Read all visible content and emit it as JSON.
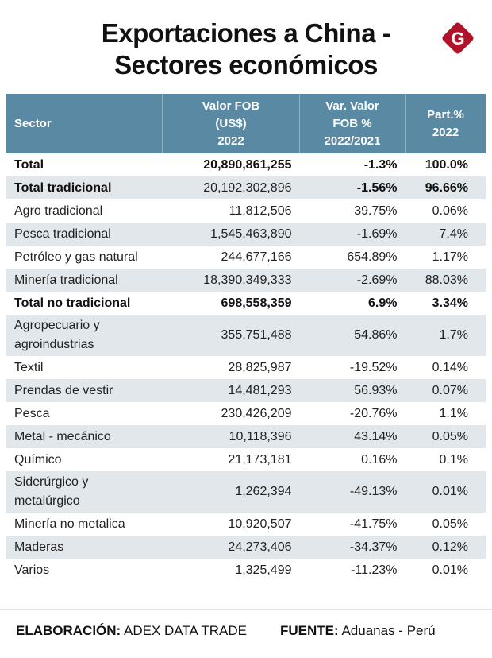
{
  "header": {
    "title_line1": "Exportaciones a China -",
    "title_line2": "Sectores económicos",
    "logo_letter": "G",
    "logo_color": "#b0122a"
  },
  "chart_data": {
    "type": "table",
    "title": "Exportaciones a China - Sectores económicos",
    "header_color": "#5a8aa3",
    "columns": [
      {
        "key": "sector",
        "label_lines": [
          "Sector"
        ]
      },
      {
        "key": "fob",
        "label_lines": [
          "Valor FOB",
          "(US$)",
          "2022"
        ]
      },
      {
        "key": "var",
        "label_lines": [
          "Var. Valor",
          "FOB %",
          "2022/2021"
        ]
      },
      {
        "key": "part",
        "label_lines": [
          "Part.%",
          "2022"
        ]
      }
    ],
    "rows": [
      {
        "sector": "Total",
        "fob": "20,890,861,255",
        "var": "-1.3%",
        "part": "100.0%",
        "bold_cols": [
          "sector",
          "fob",
          "var",
          "part"
        ]
      },
      {
        "sector": "Total tradicional",
        "fob": "20,192,302,896",
        "var": "-1.56%",
        "part": "96.66%",
        "bold_cols": [
          "sector",
          "var",
          "part"
        ]
      },
      {
        "sector": "Agro tradicional",
        "fob": "11,812,506",
        "var": "39.75%",
        "part": "0.06%",
        "bold_cols": []
      },
      {
        "sector": "Pesca tradicional",
        "fob": "1,545,463,890",
        "var": "-1.69%",
        "part": "7.4%",
        "bold_cols": []
      },
      {
        "sector": "Petróleo y gas natural",
        "fob": "244,677,166",
        "var": "654.89%",
        "part": "1.17%",
        "bold_cols": []
      },
      {
        "sector": "Minería tradicional",
        "fob": "18,390,349,333",
        "var": "-2.69%",
        "part": "88.03%",
        "bold_cols": []
      },
      {
        "sector": "Total no tradicional",
        "fob": "698,558,359",
        "var": "6.9%",
        "part": "3.34%",
        "bold_cols": [
          "sector",
          "fob",
          "var",
          "part"
        ]
      },
      {
        "sector_lines": [
          "Agropecuario y",
          "agroindustrias"
        ],
        "sector": "Agropecuario y agroindustrias",
        "fob": "355,751,488",
        "var": "54.86%",
        "part": "1.7%",
        "bold_cols": []
      },
      {
        "sector": "Textil",
        "fob": "28,825,987",
        "var": "-19.52%",
        "part": "0.14%",
        "bold_cols": []
      },
      {
        "sector": "Prendas de vestir",
        "fob": "14,481,293",
        "var": "56.93%",
        "part": "0.07%",
        "bold_cols": []
      },
      {
        "sector": "Pesca",
        "fob": "230,426,209",
        "var": "-20.76%",
        "part": "1.1%",
        "bold_cols": []
      },
      {
        "sector": "Metal - mecánico",
        "fob": "10,118,396",
        "var": "43.14%",
        "part": "0.05%",
        "bold_cols": []
      },
      {
        "sector": "Químico",
        "fob": "21,173,181",
        "var": "0.16%",
        "part": "0.1%",
        "bold_cols": []
      },
      {
        "sector_lines": [
          "Siderúrgico y",
          "metalúrgico"
        ],
        "sector": "Siderúrgico y metalúrgico",
        "fob": "1,262,394",
        "var": "-49.13%",
        "part": "0.01%",
        "bold_cols": []
      },
      {
        "sector": "Minería no metalica",
        "fob": "10,920,507",
        "var": "-41.75%",
        "part": "0.05%",
        "bold_cols": []
      },
      {
        "sector": "Maderas",
        "fob": "24,273,406",
        "var": "-34.37%",
        "part": "0.12%",
        "bold_cols": []
      },
      {
        "sector": "Varios",
        "fob": "1,325,499",
        "var": "-11.23%",
        "part": "0.01%",
        "bold_cols": []
      }
    ]
  },
  "footer": {
    "elaboracion_label": "ELABORACIÓN:",
    "elaboracion_value": "ADEX DATA TRADE",
    "fuente_label": "FUENTE:",
    "fuente_value": "Aduanas - Perú"
  }
}
